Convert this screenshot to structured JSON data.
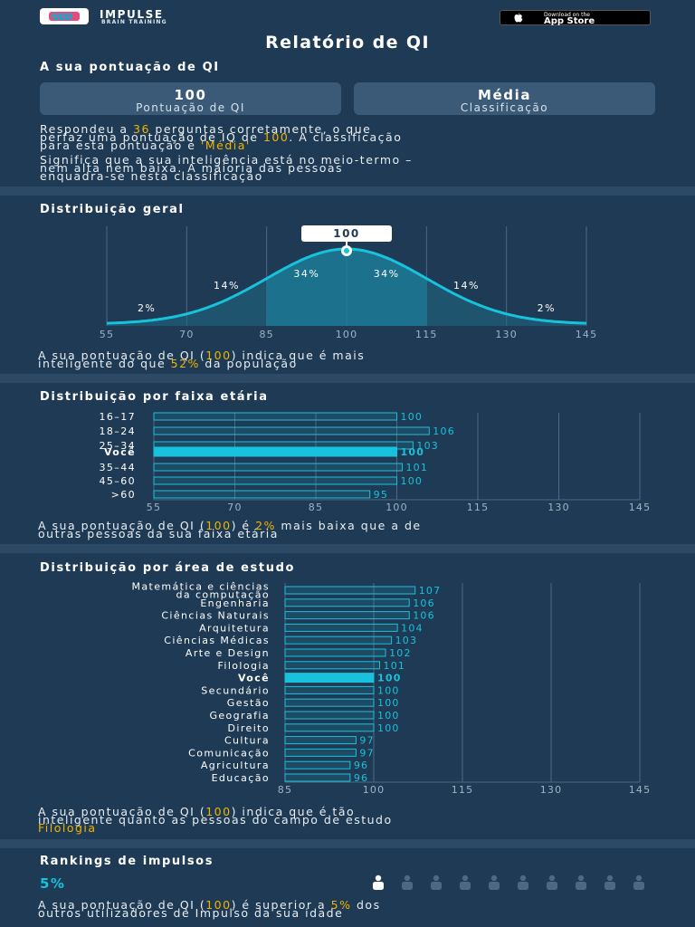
{
  "header": {
    "brand": "IMPULSE",
    "brand_sub": "BRAIN TRAINING",
    "appstore_line1": "Download on the",
    "appstore_line2": "App Store"
  },
  "title": "Relatório de QI",
  "score_section": {
    "title": "A sua pontuação de QI",
    "score_value": "100",
    "score_label": "Pontuação de QI",
    "class_value": "Média",
    "class_label": "Classificação",
    "p1_a": "Respondeu a ",
    "p1_correct": "36",
    "p1_b": " perguntas corretamente, o que",
    "p1_c": "perfaz uma pontuação de IQ de ",
    "p1_score": "100",
    "p1_d": ". A classificação",
    "p1_e": "para esta pontuação é ",
    "p1_class": "'Média'",
    "p2_a": "Significa que a sua inteligência está no meio-termo –",
    "p2_b": "nem alta nem baixa. A maioria das pessoas",
    "p2_c": "enquadra-se nesta classificação"
  },
  "general_section": {
    "title": "Distribuição geral",
    "marker_label": "100",
    "percent_labels": [
      "2%",
      "14%",
      "34%",
      "34%",
      "14%",
      "2%"
    ],
    "summary_a": "A sua pontuação de QI (",
    "summary_score": "100",
    "summary_b": ") indica que é mais",
    "summary_c": "inteligente do que ",
    "summary_pct": "52%",
    "summary_d": " da população"
  },
  "age_section": {
    "title": "Distribuição por faixa etária",
    "summary_a": "A sua pontuação de QI (",
    "summary_score": "100",
    "summary_b": ") é ",
    "summary_pct": "2%",
    "summary_c": " mais baixa que a de",
    "summary_d": "outras pessoas da sua faixa etária"
  },
  "study_section": {
    "title": "Distribuição por área de estudo",
    "summary_a": "A sua pontuação de QI (",
    "summary_score": "100",
    "summary_b": ") indica que é tão",
    "summary_c": "inteligente quanto as pessoas do campo de estudo",
    "summary_field": "Filologia"
  },
  "ranking_section": {
    "title": "Rankings de impulsos",
    "percent": "5%",
    "summary_a": "A sua pontuação de QI (",
    "summary_score": "100",
    "summary_b": ") é superior a ",
    "summary_pct": "5%",
    "summary_c": " dos",
    "summary_d": "outros utilizadores de Impulso da sua idade",
    "people_total": 10,
    "people_highlighted": 1
  },
  "colors": {
    "accent": "#18c2dc",
    "highlight": "#f0b400",
    "background": "#1f3a54",
    "card": "#3a5a78"
  },
  "chart_data": [
    {
      "type": "area",
      "title": "Distribuição geral",
      "x_ticks": [
        55,
        70,
        85,
        100,
        115,
        130,
        145
      ],
      "xlim": [
        55,
        145
      ],
      "marker_x": 100,
      "region_labels": [
        {
          "x": 62.5,
          "label": "2%"
        },
        {
          "x": 77.5,
          "label": "14%"
        },
        {
          "x": 92.5,
          "label": "34%"
        },
        {
          "x": 107.5,
          "label": "34%"
        },
        {
          "x": 122.5,
          "label": "14%"
        },
        {
          "x": 137.5,
          "label": "2%"
        }
      ],
      "curve": "normal distribution, mean 100, sd 15"
    },
    {
      "type": "bar",
      "orientation": "horizontal",
      "title": "Distribuição por faixa etária",
      "categories": [
        "16–17",
        "18–24",
        "25–34",
        "Você",
        "35–44",
        "45–60",
        ">60"
      ],
      "values": [
        100,
        106,
        103,
        100,
        101,
        100,
        95
      ],
      "highlight": "Você",
      "xlim": [
        55,
        145
      ],
      "x_ticks": [
        55,
        70,
        85,
        100,
        115,
        130,
        145
      ]
    },
    {
      "type": "bar",
      "orientation": "horizontal",
      "title": "Distribuição por área de estudo",
      "categories": [
        "Matemática e ciências da computação",
        "Engenharia",
        "Ciências Naturais",
        "Arquitetura",
        "Ciências Médicas",
        "Arte e Design",
        "Filologia",
        "Você",
        "Secundário",
        "Gestão",
        "Geografia",
        "Direito",
        "Cultura",
        "Comunicação",
        "Agricultura",
        "Educação"
      ],
      "values": [
        107,
        106,
        106,
        104,
        103,
        102,
        101,
        100,
        100,
        100,
        100,
        100,
        97,
        97,
        96,
        96
      ],
      "highlight": "Você",
      "xlim": [
        85,
        145
      ],
      "x_ticks": [
        85,
        100,
        115,
        130,
        145
      ]
    }
  ]
}
